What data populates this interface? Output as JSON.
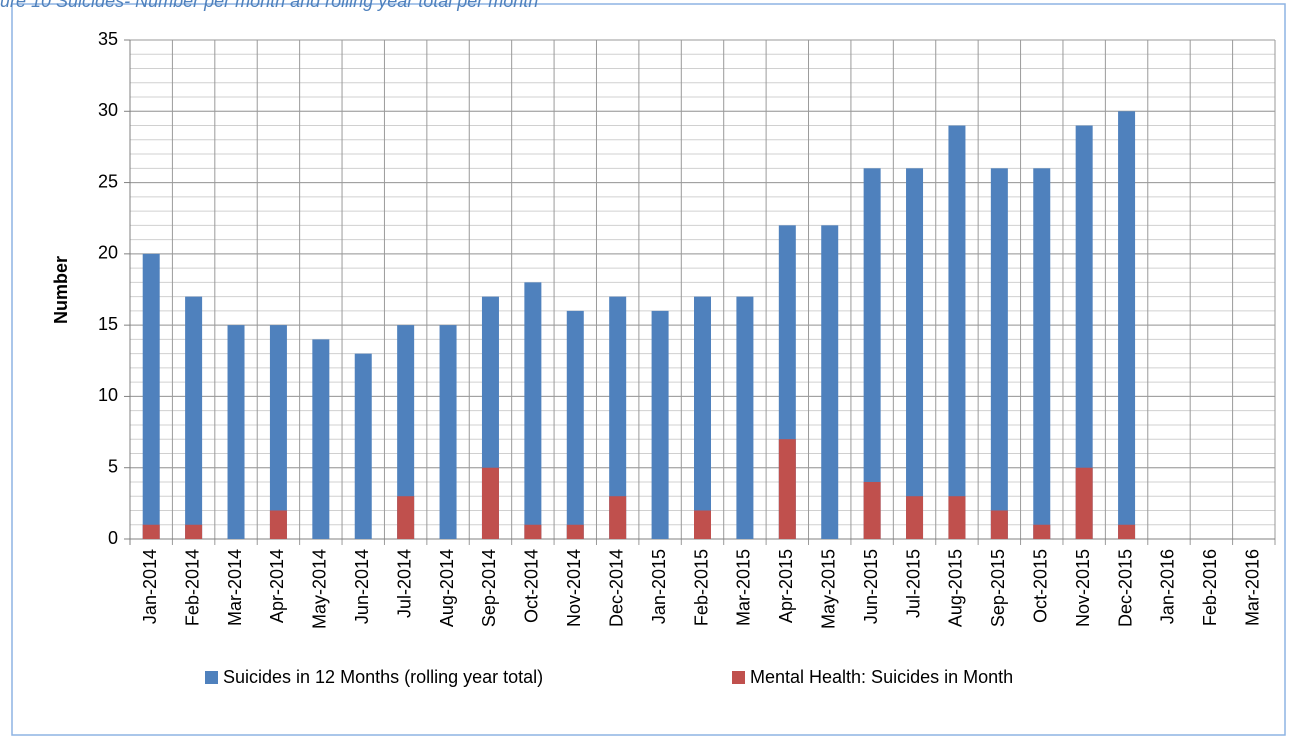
{
  "chart_data": {
    "type": "bar",
    "title": "ure 10 Suicides- Number per month and rolling year total per month",
    "y_label": "Number",
    "categories": [
      "Jan-2014",
      "Feb-2014",
      "Mar-2014",
      "Apr-2014",
      "May-2014",
      "Jun-2014",
      "Jul-2014",
      "Aug-2014",
      "Sep-2014",
      "Oct-2014",
      "Nov-2014",
      "Dec-2014",
      "Jan-2015",
      "Feb-2015",
      "Mar-2015",
      "Apr-2015",
      "May-2015",
      "Jun-2015",
      "Jul-2015",
      "Aug-2015",
      "Sep-2015",
      "Oct-2015",
      "Nov-2015",
      "Dec-2015",
      "Jan-2016",
      "Feb-2016",
      "Mar-2016"
    ],
    "series": [
      {
        "name": "Suicides in 12 Months (rolling year total)",
        "color": "#4f81bd",
        "values": [
          20,
          17,
          15,
          15,
          14,
          13,
          15,
          15,
          17,
          18,
          16,
          17,
          16,
          17,
          17,
          22,
          22,
          26,
          26,
          29,
          26,
          26,
          29,
          30,
          null,
          null,
          null
        ]
      },
      {
        "name": "Mental Health: Suicides in Month",
        "color": "#c0504d",
        "values": [
          1,
          1,
          0,
          2,
          0,
          0,
          3,
          0,
          5,
          1,
          1,
          3,
          0,
          2,
          0,
          7,
          0,
          4,
          3,
          3,
          2,
          1,
          5,
          1,
          null,
          null,
          null
        ]
      }
    ],
    "ylim": [
      0,
      35
    ],
    "yticks": [
      0,
      5,
      10,
      15,
      20,
      25,
      30,
      35
    ],
    "grid": true,
    "minor_grid": 1,
    "overlap": true,
    "legend": "bottom"
  }
}
